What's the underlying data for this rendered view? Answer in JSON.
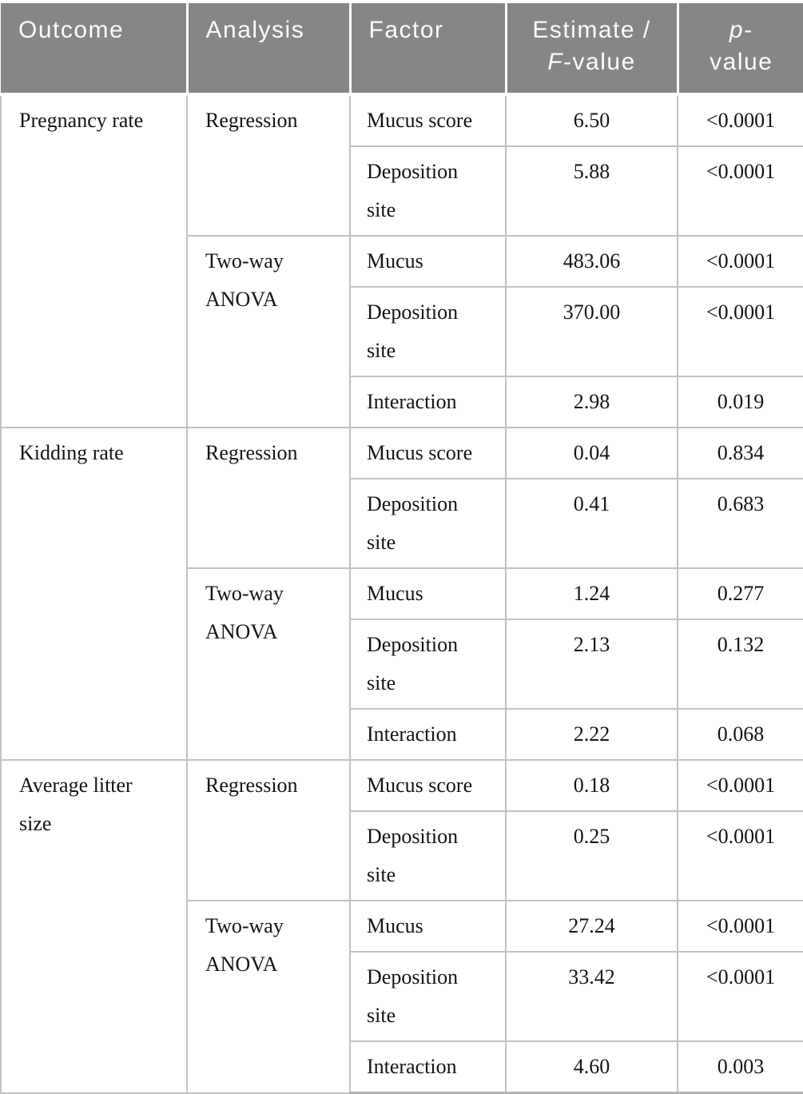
{
  "table": {
    "headers": {
      "outcome": "Outcome",
      "analysis": "Analysis",
      "factor": "Factor",
      "estimate_line1": "Estimate /",
      "estimate_italic": "F",
      "estimate_rest": "-value",
      "p_italic": "p",
      "p_dash": "-",
      "p_line2": "value"
    },
    "colors": {
      "header_bg": "#868686",
      "header_text": "#fcfcfc",
      "body_text": "#141414",
      "border": "#c2c2c2"
    },
    "sections": [
      {
        "outcome": "Pregnancy rate",
        "groups": [
          {
            "analysis": "Regression",
            "rows": [
              {
                "factor": "Mucus score",
                "estimate": "6.50",
                "p": "<0.0001"
              },
              {
                "factor": "Deposition site",
                "estimate": "5.88",
                "p": "<0.0001"
              }
            ]
          },
          {
            "analysis": "Two-way ANOVA",
            "rows": [
              {
                "factor": "Mucus",
                "estimate": "483.06",
                "p": "<0.0001"
              },
              {
                "factor": "Deposition site",
                "estimate": "370.00",
                "p": "<0.0001"
              },
              {
                "factor": "Interaction",
                "estimate": "2.98",
                "p": "0.019"
              }
            ]
          }
        ]
      },
      {
        "outcome": "Kidding rate",
        "groups": [
          {
            "analysis": "Regression",
            "rows": [
              {
                "factor": "Mucus score",
                "estimate": "0.04",
                "p": "0.834"
              },
              {
                "factor": "Deposition site",
                "estimate": "0.41",
                "p": "0.683"
              }
            ]
          },
          {
            "analysis": "Two-way ANOVA",
            "rows": [
              {
                "factor": "Mucus",
                "estimate": "1.24",
                "p": "0.277"
              },
              {
                "factor": "Deposition site",
                "estimate": "2.13",
                "p": "0.132"
              },
              {
                "factor": "Interaction",
                "estimate": "2.22",
                "p": "0.068"
              }
            ]
          }
        ]
      },
      {
        "outcome": "Average litter size",
        "groups": [
          {
            "analysis": "Regression",
            "rows": [
              {
                "factor": "Mucus score",
                "estimate": "0.18",
                "p": "<0.0001"
              },
              {
                "factor": "Deposition site",
                "estimate": "0.25",
                "p": "<0.0001"
              }
            ]
          },
          {
            "analysis": "Two-way ANOVA",
            "rows": [
              {
                "factor": "Mucus",
                "estimate": "27.24",
                "p": "<0.0001"
              },
              {
                "factor": "Deposition site",
                "estimate": "33.42",
                "p": "<0.0001"
              },
              {
                "factor": "Interaction",
                "estimate": "4.60",
                "p": "0.003"
              }
            ]
          }
        ]
      }
    ]
  }
}
